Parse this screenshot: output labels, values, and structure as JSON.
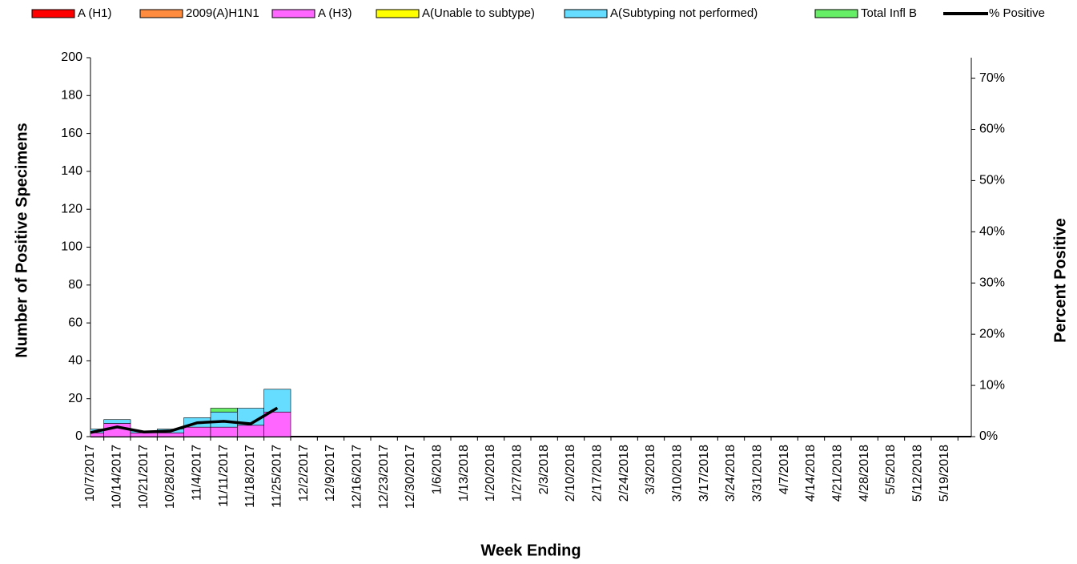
{
  "chart_data": {
    "type": "bar",
    "x_label": "Week Ending",
    "y_label": "Number of  Positive Specimens",
    "y2_label": "Percent Positive",
    "categories": [
      "10/7/2017",
      "10/14/2017",
      "10/21/2017",
      "10/28/2017",
      "11/4/2017",
      "11/11/2017",
      "11/18/2017",
      "11/25/2017",
      "12/2/2017",
      "12/9/2017",
      "12/16/2017",
      "12/23/2017",
      "12/30/2017",
      "1/6/2018",
      "1/13/2018",
      "1/20/2018",
      "1/27/2018",
      "2/3/2018",
      "2/10/2018",
      "2/17/2018",
      "2/24/2018",
      "3/3/2018",
      "3/10/2018",
      "3/17/2018",
      "3/24/2018",
      "3/31/2018",
      "4/7/2018",
      "4/14/2018",
      "4/21/2018",
      "4/28/2018",
      "5/5/2018",
      "5/12/2018",
      "5/19/2018"
    ],
    "series": [
      {
        "name": "A (H1)",
        "color": "#ff0000",
        "values": [
          0,
          0,
          0,
          0,
          0,
          0,
          0,
          0,
          0,
          0,
          0,
          0,
          0,
          0,
          0,
          0,
          0,
          0,
          0,
          0,
          0,
          0,
          0,
          0,
          0,
          0,
          0,
          0,
          0,
          0,
          0,
          0,
          0
        ]
      },
      {
        "name": "2009(A)H1N1",
        "color": "#ff8c3f",
        "values": [
          0,
          0,
          0,
          0,
          0,
          0,
          0,
          0,
          0,
          0,
          0,
          0,
          0,
          0,
          0,
          0,
          0,
          0,
          0,
          0,
          0,
          0,
          0,
          0,
          0,
          0,
          0,
          0,
          0,
          0,
          0,
          0,
          0
        ]
      },
      {
        "name": "A (H3)",
        "color": "#ff66ff",
        "values": [
          2,
          7,
          2,
          2,
          5,
          5,
          6,
          13,
          0,
          0,
          0,
          0,
          0,
          0,
          0,
          0,
          0,
          0,
          0,
          0,
          0,
          0,
          0,
          0,
          0,
          0,
          0,
          0,
          0,
          0,
          0,
          0,
          0
        ]
      },
      {
        "name": "A(Unable to subtype)",
        "color": "#ffff00",
        "values": [
          0,
          0,
          0,
          0,
          0,
          0,
          0,
          0,
          0,
          0,
          0,
          0,
          0,
          0,
          0,
          0,
          0,
          0,
          0,
          0,
          0,
          0,
          0,
          0,
          0,
          0,
          0,
          0,
          0,
          0,
          0,
          0,
          0
        ]
      },
      {
        "name": "A(Subtyping not performed)",
        "color": "#66ddff",
        "values": [
          2,
          2,
          1,
          2,
          5,
          8,
          9,
          12,
          0,
          0,
          0,
          0,
          0,
          0,
          0,
          0,
          0,
          0,
          0,
          0,
          0,
          0,
          0,
          0,
          0,
          0,
          0,
          0,
          0,
          0,
          0,
          0,
          0
        ]
      },
      {
        "name": "Total Infl B",
        "color": "#66ee66",
        "values": [
          0,
          0,
          0,
          0,
          0,
          2,
          0,
          0,
          0,
          0,
          0,
          0,
          0,
          0,
          0,
          0,
          0,
          0,
          0,
          0,
          0,
          0,
          0,
          0,
          0,
          0,
          0,
          0,
          0,
          0,
          0,
          0,
          0
        ]
      },
      {
        "name": "% Positive",
        "color": "#000000",
        "type": "line",
        "axis": "y2",
        "values": [
          0.8,
          1.9,
          0.9,
          1.1,
          2.7,
          3.0,
          2.5,
          5.6,
          null,
          null,
          null,
          null,
          null,
          null,
          null,
          null,
          null,
          null,
          null,
          null,
          null,
          null,
          null,
          null,
          null,
          null,
          null,
          null,
          null,
          null,
          null,
          null,
          null
        ]
      }
    ],
    "stacked": true,
    "ylim": [
      0,
      200
    ],
    "yticks": [
      0,
      20,
      40,
      60,
      80,
      100,
      120,
      140,
      160,
      180,
      200
    ],
    "y2lim": [
      0,
      74
    ],
    "y2ticks": [
      {
        "value": 0,
        "label": "0%"
      },
      {
        "value": 10,
        "label": "10%"
      },
      {
        "value": 20,
        "label": "20%"
      },
      {
        "value": 30,
        "label": "30%"
      },
      {
        "value": 40,
        "label": "40%"
      },
      {
        "value": 50,
        "label": "50%"
      },
      {
        "value": 60,
        "label": "60%"
      },
      {
        "value": 70,
        "label": "70%"
      }
    ],
    "legend": "top"
  }
}
